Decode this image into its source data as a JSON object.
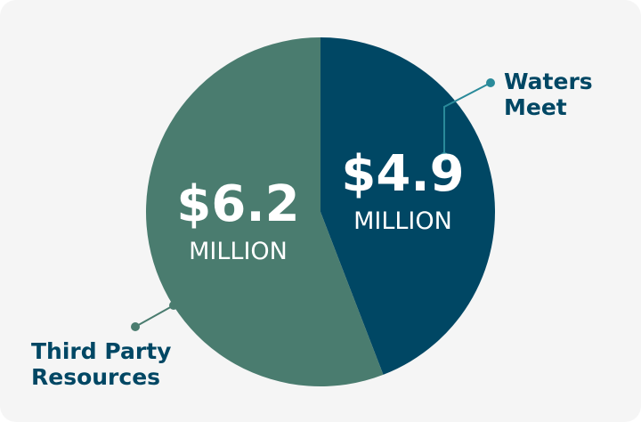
{
  "chart_data": {
    "type": "pie",
    "categories": [
      "Waters Meet",
      "Third Party Resources"
    ],
    "values": [
      4.9,
      6.2
    ],
    "value_labels": [
      "$4.9",
      "$6.2"
    ],
    "value_units": [
      "MILLION",
      "MILLION"
    ],
    "colors": [
      "#004764",
      "#4a7c6f"
    ]
  }
}
